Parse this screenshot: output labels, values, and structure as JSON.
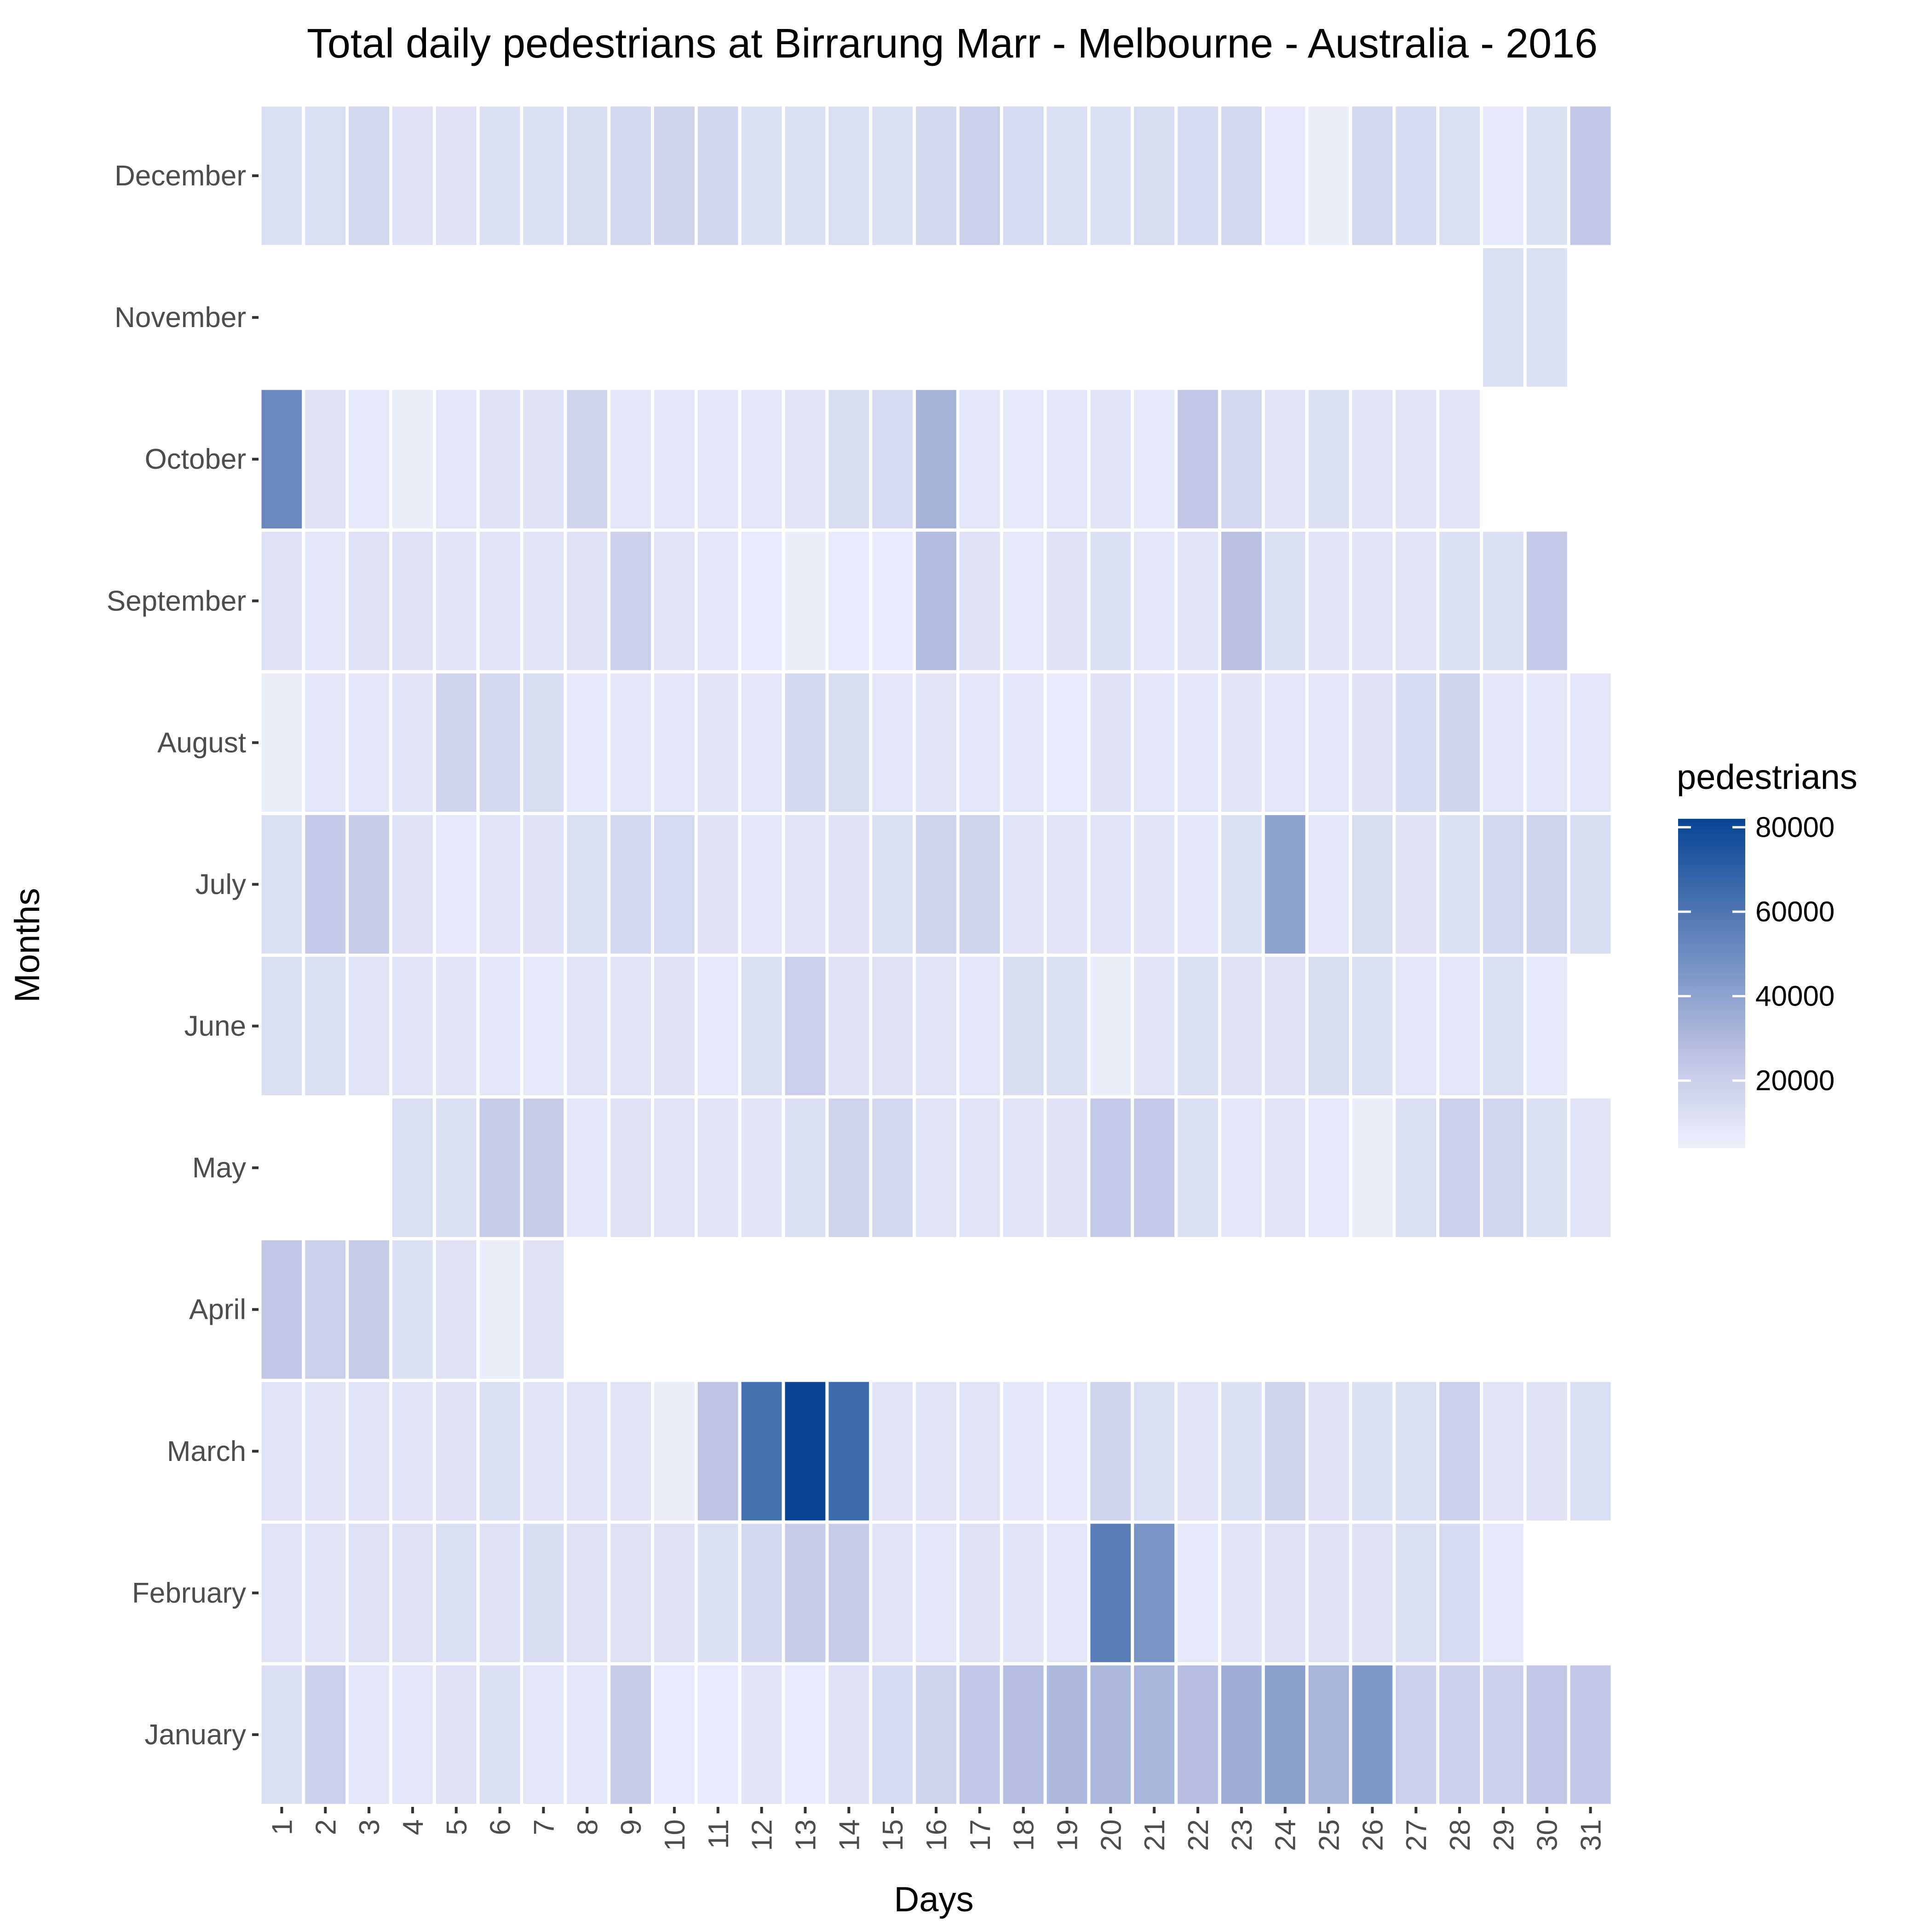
{
  "chart_data": {
    "type": "heatmap",
    "title": "Total daily pedestrians at Birrarung Marr - Melbourne - Australia - 2016",
    "xlabel": "Days",
    "ylabel": "Months",
    "x_categories": [
      "1",
      "2",
      "3",
      "4",
      "5",
      "6",
      "7",
      "8",
      "9",
      "10",
      "11",
      "12",
      "13",
      "14",
      "15",
      "16",
      "17",
      "18",
      "19",
      "20",
      "21",
      "22",
      "23",
      "24",
      "25",
      "26",
      "27",
      "28",
      "29",
      "30",
      "31"
    ],
    "y_categories": [
      "January",
      "February",
      "March",
      "April",
      "May",
      "June",
      "July",
      "August",
      "September",
      "October",
      "November",
      "December"
    ],
    "legend": {
      "title": "pedestrians",
      "ticks": [
        20000,
        40000,
        60000,
        80000
      ],
      "tick_labels": [
        "20000",
        "40000",
        "60000",
        "80000"
      ],
      "min": 4000,
      "max": 82000,
      "position": "right"
    },
    "colors": {
      "low": "#eef1fc",
      "mid": "#c3c8e6",
      "high": "#084594",
      "grid_line": "#ffffff"
    },
    "values": {
      "January": [
        12000,
        20000,
        9000,
        9000,
        11000,
        13000,
        9000,
        9000,
        22000,
        7000,
        7000,
        10000,
        7000,
        11000,
        15000,
        18000,
        24000,
        28000,
        30000,
        31000,
        32000,
        28000,
        35000,
        42000,
        32000,
        45000,
        20000,
        20000,
        19000,
        24000,
        24000
      ],
      "February": [
        10000,
        10000,
        11000,
        11000,
        13000,
        11000,
        14000,
        11000,
        11000,
        11000,
        12000,
        16000,
        22000,
        22000,
        10000,
        9000,
        11000,
        10000,
        9000,
        57000,
        47000,
        8000,
        10000,
        11000,
        11000,
        11000,
        13000,
        15000,
        8000,
        null,
        null
      ],
      "March": [
        10000,
        10000,
        10000,
        10000,
        11000,
        13000,
        10000,
        10000,
        10000,
        6000,
        25000,
        63000,
        82000,
        65000,
        10000,
        10000,
        10000,
        9000,
        8000,
        18000,
        13000,
        10000,
        12000,
        18000,
        11000,
        12000,
        13000,
        20000,
        10000,
        11000,
        13000
      ],
      "April": [
        24000,
        20000,
        22000,
        12000,
        11000,
        6000,
        11000,
        null,
        null,
        null,
        null,
        null,
        null,
        null,
        null,
        null,
        null,
        null,
        null,
        null,
        null,
        null,
        null,
        null,
        null,
        null,
        null,
        null,
        null,
        null,
        null
      ],
      "May": [
        null,
        null,
        null,
        13000,
        12000,
        22000,
        22000,
        9000,
        11000,
        10000,
        10000,
        10000,
        13000,
        18000,
        16000,
        10000,
        10000,
        10000,
        11000,
        23000,
        23000,
        12000,
        9000,
        10000,
        8000,
        6000,
        13000,
        20000,
        17000,
        12000,
        10000
      ],
      "June": [
        12000,
        12000,
        10000,
        10000,
        10000,
        9000,
        8000,
        10000,
        10000,
        11000,
        8000,
        13000,
        20000,
        11000,
        11000,
        10000,
        9000,
        14000,
        12000,
        6000,
        10000,
        12000,
        11000,
        11000,
        14000,
        12000,
        9000,
        9000,
        13000,
        8000,
        null
      ],
      "July": [
        12000,
        23000,
        22000,
        11000,
        8000,
        10000,
        11000,
        13000,
        16000,
        15000,
        11000,
        9000,
        10000,
        11000,
        12000,
        18000,
        18000,
        10000,
        10000,
        10000,
        10000,
        9000,
        12000,
        40000,
        9000,
        14000,
        11000,
        12000,
        16000,
        18000,
        14000
      ],
      "August": [
        6000,
        9000,
        9000,
        10000,
        18000,
        16000,
        14000,
        8000,
        9000,
        9000,
        10000,
        9000,
        16000,
        14000,
        9000,
        10000,
        9000,
        9000,
        7000,
        11000,
        9000,
        9000,
        10000,
        9000,
        9000,
        11000,
        15000,
        18000,
        9000,
        9000,
        9000
      ],
      "September": [
        11000,
        9000,
        11000,
        11000,
        10000,
        10000,
        10000,
        11000,
        20000,
        10000,
        9000,
        7000,
        6000,
        7000,
        7000,
        29000,
        11000,
        8000,
        11000,
        12000,
        9000,
        10000,
        27000,
        13000,
        10000,
        10000,
        10000,
        12000,
        12000,
        23000,
        null
      ],
      "October": [
        52000,
        11000,
        8000,
        6000,
        9000,
        11000,
        11000,
        18000,
        9000,
        9000,
        9000,
        9000,
        10000,
        14000,
        15000,
        33000,
        9000,
        8000,
        9000,
        10000,
        8000,
        24000,
        16000,
        10000,
        12000,
        10000,
        10000,
        10000,
        null,
        null,
        null
      ],
      "November": [
        null,
        null,
        null,
        null,
        null,
        null,
        null,
        null,
        null,
        null,
        null,
        null,
        null,
        null,
        null,
        null,
        null,
        null,
        null,
        null,
        null,
        null,
        null,
        null,
        null,
        null,
        null,
        null,
        12000,
        12000,
        null
      ],
      "December": [
        12000,
        13000,
        16000,
        11000,
        11000,
        12000,
        12000,
        14000,
        16000,
        18000,
        17000,
        12000,
        12000,
        13000,
        12000,
        16000,
        20000,
        15000,
        13000,
        12000,
        14000,
        15000,
        16000,
        8000,
        6000,
        16000,
        15000,
        13000,
        8000,
        12000,
        24000
      ]
    }
  }
}
